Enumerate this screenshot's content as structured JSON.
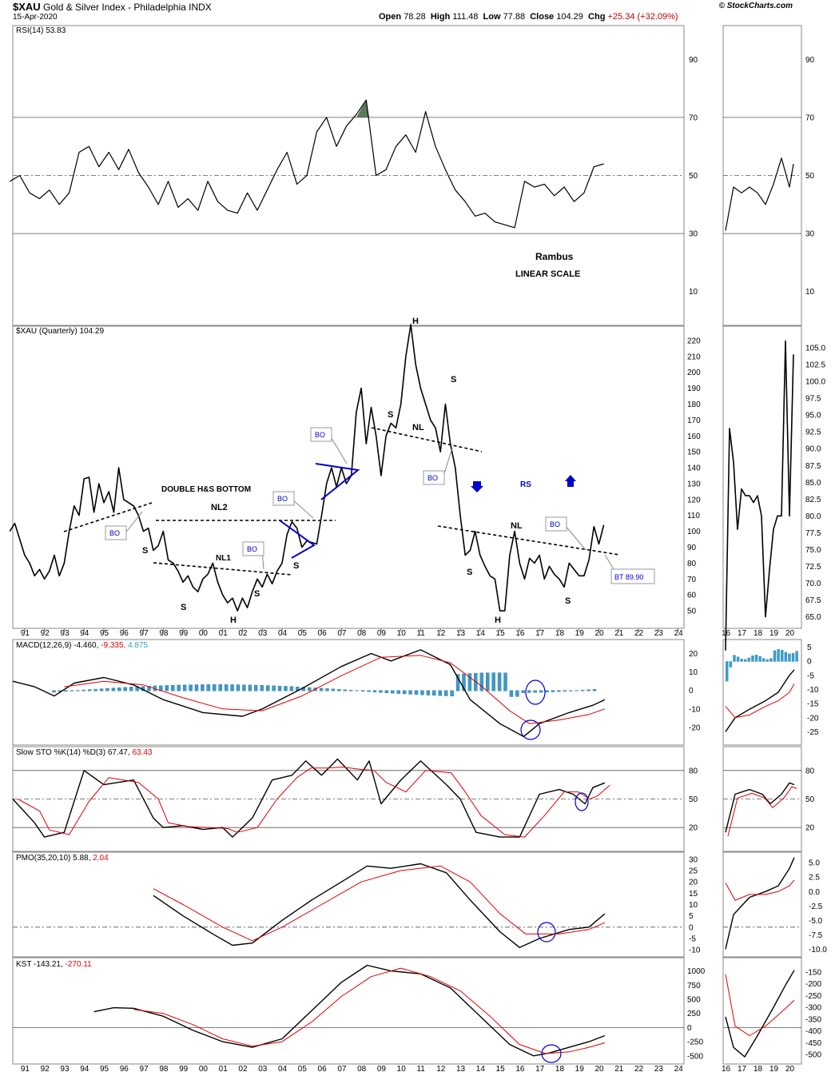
{
  "header": {
    "symbol": "$XAU",
    "name": "Gold & Silver Index - Philadelphia INDX",
    "date": "15-Apr-2020",
    "open_label": "Open",
    "open": "78.28",
    "high_label": "High",
    "high": "111.48",
    "low_label": "Low",
    "low": "77.88",
    "close_label": "Close",
    "close": "104.29",
    "chg_label": "Chg",
    "chg": "+25.34 (+32.09%)",
    "chg_color": "#c00000",
    "brand": "© StockCharts.com"
  },
  "chart_data": [
    {
      "type": "line",
      "panel": "rsi",
      "label": "RSI(14) 53.83",
      "ylim": [
        0,
        100
      ],
      "yticks": [
        10,
        30,
        50,
        70,
        90
      ],
      "reference_lines": [
        30,
        50,
        70
      ],
      "x": [
        1990.25,
        1990.75,
        1991.25,
        1991.75,
        1992.25,
        1992.75,
        1993.25,
        1993.75,
        1994.25,
        1994.75,
        1995.25,
        1995.75,
        1996.25,
        1996.75,
        1997.25,
        1997.75,
        1998.25,
        1998.75,
        1999.25,
        1999.75,
        2000.25,
        2000.75,
        2001.25,
        2001.75,
        2002.25,
        2002.75,
        2003.25,
        2003.75,
        2004.25,
        2004.75,
        2005.25,
        2005.75,
        2006.25,
        2006.75,
        2007.25,
        2007.75,
        2008.25,
        2008.75,
        2009.25,
        2009.75,
        2010.25,
        2010.75,
        2011.25,
        2011.75,
        2012.25,
        2012.75,
        2013.25,
        2013.75,
        2014.25,
        2014.75,
        2015.25,
        2015.75,
        2016.25,
        2016.75,
        2017.25,
        2017.75,
        2018.25,
        2018.75,
        2019.25,
        2019.75,
        2020.25
      ],
      "y": [
        48,
        50,
        44,
        42,
        45,
        40,
        44,
        58,
        60,
        53,
        58,
        52,
        59,
        51,
        46,
        40,
        48,
        39,
        42,
        38,
        48,
        41,
        38,
        37,
        44,
        38,
        45,
        52,
        58,
        47,
        50,
        65,
        70,
        60,
        67,
        71,
        76,
        50,
        52,
        60,
        64,
        58,
        72,
        60,
        52,
        45,
        41,
        36,
        37,
        34,
        33,
        32,
        48,
        46,
        47,
        43,
        46,
        41,
        44,
        53,
        54
      ],
      "overlay_tail": {
        "x": [
          2016,
          2016.5,
          2017,
          2017.5,
          2018,
          2018.5,
          2019,
          2019.5,
          2020,
          2020.25
        ],
        "y": [
          31,
          46,
          44,
          46,
          44,
          40,
          47,
          56,
          46,
          54
        ]
      },
      "annotations": [
        "Rambus",
        "LINEAR SCALE"
      ]
    },
    {
      "type": "line",
      "panel": "price",
      "label": "$XAU (Quarterly) 104.29",
      "ylim": [
        42,
        226
      ],
      "yticks": [
        50,
        60,
        70,
        80,
        90,
        100,
        110,
        120,
        130,
        140,
        150,
        160,
        170,
        180,
        190,
        200,
        210,
        220
      ],
      "x": [
        1990.25,
        1990.5,
        1990.75,
        1991,
        1991.25,
        1991.5,
        1991.75,
        1992,
        1992.25,
        1992.5,
        1992.75,
        1993,
        1993.25,
        1993.5,
        1993.75,
        1994,
        1994.25,
        1994.5,
        1994.75,
        1995,
        1995.25,
        1995.5,
        1995.75,
        1996,
        1996.25,
        1996.5,
        1996.75,
        1997,
        1997.25,
        1997.5,
        1997.75,
        1998,
        1998.25,
        1998.5,
        1998.75,
        1999,
        1999.25,
        1999.5,
        1999.75,
        2000,
        2000.25,
        2000.5,
        2000.75,
        2001,
        2001.25,
        2001.5,
        2001.75,
        2002,
        2002.25,
        2002.5,
        2002.75,
        2003,
        2003.25,
        2003.5,
        2003.75,
        2004,
        2004.25,
        2004.5,
        2004.75,
        2005,
        2005.25,
        2005.5,
        2005.75,
        2006,
        2006.25,
        2006.5,
        2006.75,
        2007,
        2007.25,
        2007.5,
        2007.75,
        2008,
        2008.25,
        2008.5,
        2008.75,
        2009,
        2009.25,
        2009.5,
        2009.75,
        2010,
        2010.25,
        2010.5,
        2010.75,
        2011,
        2011.25,
        2011.5,
        2011.75,
        2012,
        2012.25,
        2012.5,
        2012.75,
        2013,
        2013.25,
        2013.5,
        2013.75,
        2014,
        2014.25,
        2014.5,
        2014.75,
        2015,
        2015.25,
        2015.5,
        2015.75,
        2016,
        2016.25,
        2016.5,
        2016.75,
        2017,
        2017.25,
        2017.5,
        2017.75,
        2018,
        2018.25,
        2018.5,
        2018.75,
        2019,
        2019.25,
        2019.5,
        2019.75,
        2020,
        2020.25
      ],
      "y": [
        100,
        105,
        95,
        85,
        80,
        72,
        76,
        70,
        75,
        85,
        72,
        80,
        100,
        116,
        110,
        133,
        134,
        112,
        130,
        118,
        125,
        112,
        140,
        120,
        118,
        116,
        110,
        100,
        102,
        88,
        91,
        100,
        82,
        80,
        75,
        68,
        72,
        65,
        62,
        70,
        73,
        80,
        68,
        60,
        55,
        58,
        50,
        58,
        52,
        62,
        70,
        65,
        73,
        67,
        75,
        80,
        98,
        106,
        102,
        90,
        94,
        93,
        92,
        110,
        130,
        140,
        128,
        140,
        130,
        135,
        175,
        190,
        155,
        178,
        160,
        135,
        160,
        168,
        165,
        180,
        210,
        230,
        205,
        190,
        180,
        170,
        165,
        150,
        180,
        155,
        140,
        110,
        85,
        88,
        100,
        85,
        78,
        72,
        70,
        50,
        50,
        85,
        100,
        80,
        70,
        83,
        80,
        85,
        70,
        78,
        73,
        70,
        65,
        80,
        76,
        72,
        72,
        82,
        103,
        92,
        104
      ],
      "overlay_tail": {
        "ylim": [
          64,
          107.5
        ],
        "yticks": [
          65,
          67.5,
          70,
          72.5,
          75,
          77.5,
          80,
          82.5,
          85,
          87.5,
          90,
          92.5,
          95,
          97.5,
          100,
          102.5,
          105
        ],
        "x": [
          2016,
          2016.25,
          2016.5,
          2016.75,
          2017,
          2017.25,
          2017.5,
          2017.75,
          2018,
          2018.25,
          2018.5,
          2018.75,
          2019,
          2019.25,
          2019.5,
          2019.75,
          2020,
          2020.25
        ],
        "y": [
          60,
          93,
          88,
          78,
          84,
          83,
          83,
          82,
          83,
          80,
          65,
          72,
          78,
          80,
          80,
          106,
          80,
          104
        ]
      },
      "annotations": [
        "H",
        "S",
        "S",
        "NL",
        "DOUBLE H&S BOTTOM",
        "NL2",
        "NL1",
        "S",
        "S",
        "S",
        "H",
        "S",
        "S",
        "NL",
        "RS",
        "H",
        "S",
        "BO",
        "BO",
        "BO",
        "BO",
        "BO",
        "BO",
        "BT 89.90"
      ]
    },
    {
      "type": "line",
      "panel": "macd",
      "label_parts": [
        "MACD(12,26,9)",
        "-4.460",
        "-9.335",
        "4.875"
      ],
      "ylim": [
        -27,
        25
      ],
      "yticks": [
        -20,
        -10,
        0,
        10,
        20
      ],
      "overlay_tail": {
        "ylim": [
          -28,
          6
        ],
        "yticks": [
          -25,
          -20,
          -15,
          -10,
          -5,
          0,
          5
        ]
      }
    },
    {
      "type": "line",
      "panel": "sto",
      "label_parts": [
        "Slow STO %K(14) %D(3)",
        "67.47",
        "63.43"
      ],
      "ylim": [
        0,
        100
      ],
      "yticks": [
        20,
        50,
        80
      ],
      "reference_lines": [
        20,
        50,
        80
      ]
    },
    {
      "type": "line",
      "panel": "pmo",
      "label_parts": [
        "PMO(35,20,10)",
        "5.88",
        "2.04"
      ],
      "ylim": [
        -11,
        31
      ],
      "yticks": [
        -10,
        -5,
        0,
        5,
        10,
        15,
        20,
        25,
        30
      ],
      "overlay_tail": {
        "ylim": [
          -10.5,
          6
        ],
        "yticks": [
          -10,
          -7.5,
          -5,
          -2.5,
          0,
          2.5,
          5
        ]
      }
    },
    {
      "type": "line",
      "panel": "kst",
      "label_parts": [
        "KST",
        "-143.21",
        "-270.11"
      ],
      "ylim": [
        -560,
        1150
      ],
      "yticks": [
        -500,
        -250,
        0,
        250,
        500,
        750,
        1000
      ],
      "overlay_tail": {
        "ylim": [
          -520,
          -110
        ],
        "yticks": [
          -500,
          -450,
          -400,
          -350,
          -300,
          -250,
          -200,
          -150
        ]
      }
    }
  ],
  "x_axis": {
    "main_labels": [
      "91",
      "92",
      "93",
      "94",
      "95",
      "96",
      "97",
      "98",
      "99",
      "00",
      "01",
      "02",
      "03",
      "04",
      "05",
      "06",
      "07",
      "08",
      "09",
      "10",
      "11",
      "12",
      "13",
      "14",
      "15",
      "16",
      "17",
      "18",
      "19",
      "20",
      "21",
      "22",
      "23",
      "24"
    ],
    "side_labels": [
      "16",
      "17",
      "18",
      "19",
      "20"
    ]
  },
  "colors": {
    "line": "#000000",
    "signal": "#e00000",
    "hist": "#3d9ac9",
    "annot_blue": "#0000cc",
    "rsi_fill": "#5a7a5a",
    "grid": "#aaaaaa"
  }
}
